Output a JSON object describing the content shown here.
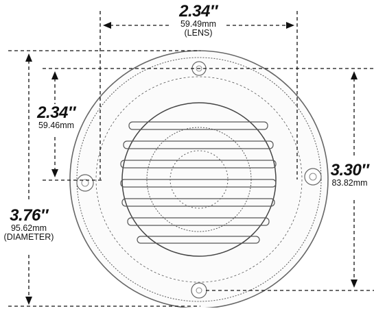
{
  "dimensions": {
    "lens_width": {
      "value": "2.34″",
      "metric": "59.49mm",
      "note": "(LENS)"
    },
    "lens_height": {
      "value": "2.34″",
      "metric": "59.46mm"
    },
    "mount_spacing": {
      "value": "3.30″",
      "metric": "83.82mm"
    },
    "diameter": {
      "value": "3.76″",
      "metric": "95.62mm",
      "note": "(DIAMETER)"
    }
  },
  "colors": {
    "line": "#111111",
    "lamp_outline": "#555555",
    "background": "#ffffff"
  },
  "icons": [
    "dimension-arrow-icon",
    "mounting-screw-icon"
  ]
}
